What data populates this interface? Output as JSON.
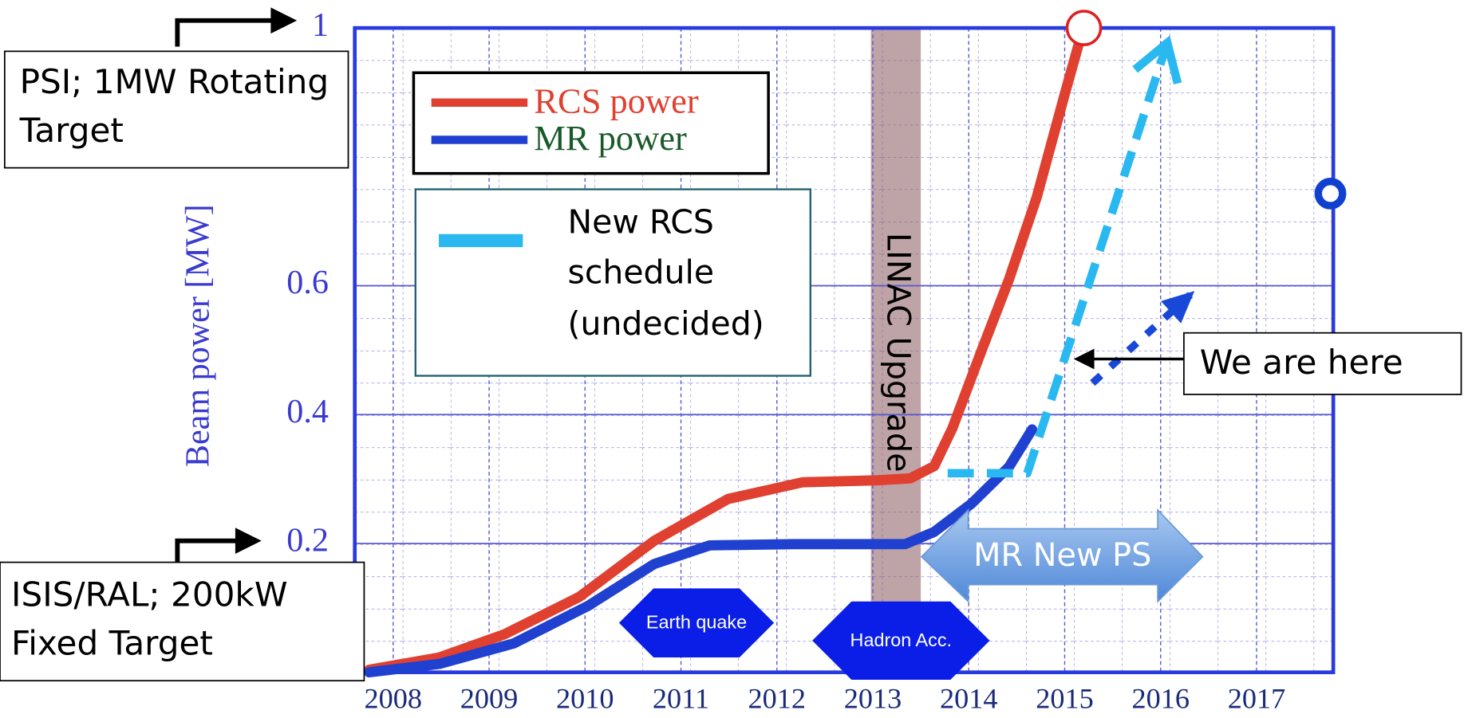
{
  "chart_data": {
    "type": "line",
    "ylabel": "Beam power [MW]",
    "xlim": [
      2007.6,
      2017.8
    ],
    "xticks": [
      2008,
      2009,
      2010,
      2011,
      2012,
      2013,
      2014,
      2015,
      2016,
      2017
    ],
    "ylim": [
      0,
      1
    ],
    "yticks": [
      0.2,
      0.4,
      0.6,
      1
    ],
    "grid": true,
    "series": [
      {
        "name": "RCS power",
        "color": "#e04030",
        "x": [
          2007.75,
          2008.48,
          2009.16,
          2009.94,
          2010.72,
          2011.49,
          2012.27,
          2013.05,
          2013.39,
          2013.64,
          2013.83,
          2014.12,
          2014.42,
          2014.71,
          2015.0,
          2015.15
        ],
        "values": [
          0.004,
          0.023,
          0.059,
          0.117,
          0.204,
          0.269,
          0.295,
          0.298,
          0.301,
          0.32,
          0.379,
          0.494,
          0.61,
          0.738,
          0.897,
          0.977
        ]
      },
      {
        "name": "MR power",
        "color": "#2040d0",
        "name_color": "#1a5a2a",
        "x": [
          2007.75,
          2008.48,
          2009.26,
          2010.03,
          2010.72,
          2011.3,
          2012.18,
          2013.34,
          2013.64,
          2014.03,
          2014.42,
          2014.66
        ],
        "values": [
          0,
          0.013,
          0.045,
          0.103,
          0.168,
          0.197,
          0.199,
          0.199,
          0.218,
          0.262,
          0.319,
          0.377
        ]
      },
      {
        "name": "New RCS schedule (undecided)",
        "color": "#2ab8f0",
        "dashed": true,
        "arrow": true,
        "x": [
          2013.78,
          2014.61,
          2016.07
        ],
        "values": [
          0.309,
          0.309,
          0.977
        ]
      },
      {
        "color": "#1848d8",
        "dotted": true,
        "arrow": true,
        "x": [
          2015.29,
          2016.31
        ],
        "values": [
          0.449,
          0.586
        ]
      }
    ],
    "points": [
      {
        "x": 2015.2,
        "y": 1,
        "color": "#e02020"
      },
      {
        "x": 2017.77,
        "y": 0.743,
        "color": "#1040d0"
      }
    ],
    "band": {
      "label": "LINAC Upgrade",
      "x": [
        2012.98,
        2013.5
      ],
      "color": "#8b5a5e"
    },
    "annotations": {
      "psi": "PSI; 1MW Rotating Target",
      "isis": "ISIS/RAL; 200kW Fixed Target",
      "here": "We are here",
      "earthquake": "Earth quake",
      "hadron": "Hadron Acc.",
      "mr_new_ps": "MR New PS"
    }
  }
}
